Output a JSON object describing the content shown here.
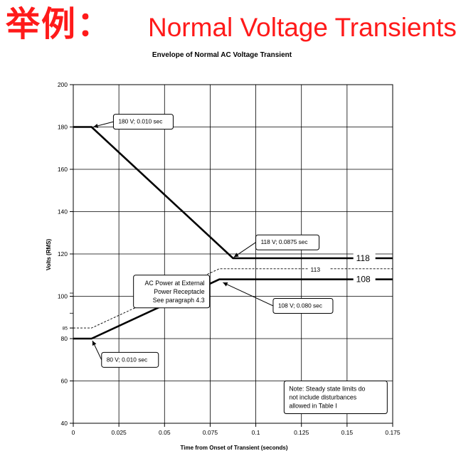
{
  "slide": {
    "title_cn": "举例：",
    "title_en": "Normal Voltage Transients",
    "accent_color": "#ff1a1a"
  },
  "chart_data": {
    "type": "line",
    "title": "Envelope of Normal AC Voltage Transient",
    "xlabel": "Time from Onset of Transient (seconds)",
    "ylabel": "Volts (RMS)",
    "xlim": [
      0,
      0.175
    ],
    "ylim": [
      40,
      200
    ],
    "x_ticks": [
      0,
      0.025,
      0.05,
      0.075,
      0.1,
      0.125,
      0.15,
      0.175
    ],
    "x_tick_labels": [
      "0",
      "0.025",
      "0.05",
      "0.075",
      "0.1",
      "0.125",
      "0.15",
      "0.175"
    ],
    "y_ticks": [
      40,
      60,
      80,
      100,
      120,
      140,
      160,
      180,
      200
    ],
    "y_tick_labels": [
      "40",
      "60",
      "80",
      "100",
      "120",
      "140",
      "160",
      "180",
      "200"
    ],
    "extra_y_tick": {
      "value": 85,
      "label": "85"
    },
    "grid": true,
    "series": [
      {
        "style": "thick",
        "points": [
          [
            0,
            180
          ],
          [
            0.01,
            180
          ],
          [
            0.0875,
            118
          ],
          [
            0.175,
            118
          ]
        ]
      },
      {
        "style": "thick",
        "points": [
          [
            0,
            80
          ],
          [
            0.01,
            80
          ],
          [
            0.08,
            108
          ],
          [
            0.175,
            108
          ]
        ]
      },
      {
        "style": "dashed",
        "points": [
          [
            0,
            85
          ],
          [
            0.01,
            85
          ],
          [
            0.08,
            113
          ],
          [
            0.175,
            113
          ]
        ]
      }
    ],
    "line_labels": [
      {
        "text": "118",
        "x": 0.155,
        "y": 118
      },
      {
        "text": "108",
        "x": 0.155,
        "y": 108
      },
      {
        "text": "113",
        "x": 0.13,
        "y": 113
      }
    ],
    "callouts": [
      {
        "lines": [
          "180 V; 0.010 sec"
        ],
        "box": {
          "x": 0.022,
          "y": 186
        },
        "target": [
          0.011,
          180
        ]
      },
      {
        "lines": [
          "118 V; 0.0875 sec"
        ],
        "box": {
          "x": 0.1,
          "y": 129
        },
        "target": [
          0.088,
          118.5
        ]
      },
      {
        "lines": [
          "108 V; 0.080 sec"
        ],
        "box": {
          "x": 0.1095,
          "y": 99
        },
        "target": [
          0.082,
          106.5
        ]
      },
      {
        "lines": [
          "80 V; 0.010 sec"
        ],
        "box": {
          "x": 0.0155,
          "y": 73.5
        },
        "target": [
          0.0105,
          79
        ]
      },
      {
        "lines": [
          "AC Power at External",
          "Power Receptacle",
          "See paragraph 4.3"
        ],
        "box": {
          "x": 0.033,
          "y": 110
        },
        "target": [
          0.06,
          109
        ]
      },
      {
        "lines": [
          "Note: Steady state limits do",
          "not include disturbances",
          "allowed in Table I"
        ],
        "box": {
          "x": 0.1155,
          "y": 60
        },
        "target": null
      }
    ]
  }
}
